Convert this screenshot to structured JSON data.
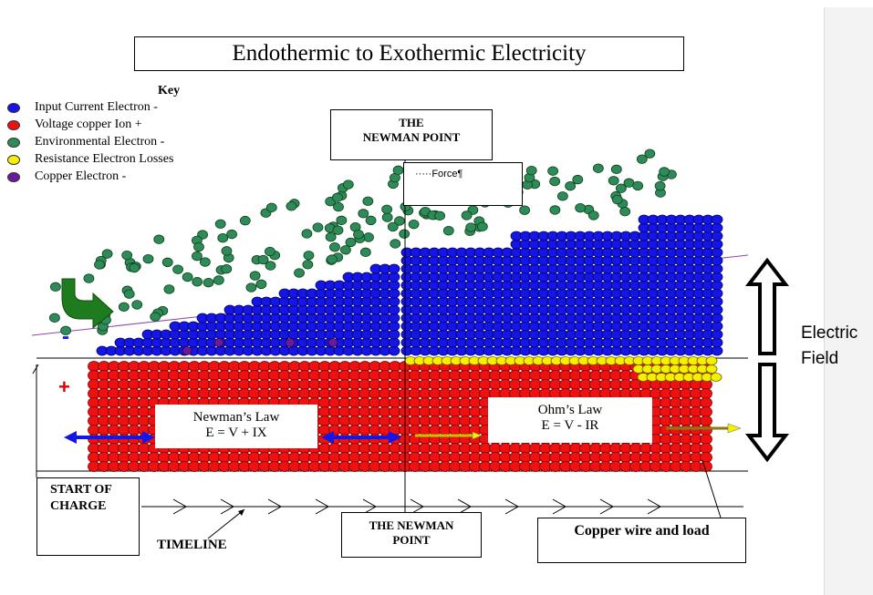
{
  "title": "Endothermic to Exothermic Electricity",
  "key": {
    "heading": "Key",
    "items": [
      {
        "label": "Input Current Electron -",
        "color": "#1515e6"
      },
      {
        "label": "Voltage copper Ion +",
        "color": "#ee1111"
      },
      {
        "label": "Environmental Electron -",
        "color": "#2e8b57"
      },
      {
        "label": "Resistance Electron Losses",
        "color": "#f5f000"
      },
      {
        "label": "Copper  Electron -",
        "color": "#6a1b9a"
      }
    ]
  },
  "newman_point_top": {
    "line1": "THE",
    "line2": "NEWMAN POINT"
  },
  "force_box": {
    "label": "·····Force¶"
  },
  "newmans_law": {
    "name": "Newman’s Law",
    "equation": "E = V + IX"
  },
  "ohms_law": {
    "name": "Ohm’s Law",
    "equation": "E = V - IR"
  },
  "start_of_charge": {
    "line1": "START OF",
    "line2": "CHARGE"
  },
  "timeline_label": "TIMELINE",
  "newman_point_bottom": {
    "line1": "THE NEWMAN",
    "line2": "POINT"
  },
  "copper_wire_label": "Copper wire and load",
  "electric_field": {
    "line1": "Electric",
    "line2": "Field"
  },
  "signs": {
    "minus": "-",
    "plus": "+"
  },
  "colors": {
    "electron_blue": "#1515e6",
    "ion_red": "#ee1111",
    "environmental_green": "#2e8b57",
    "loss_yellow": "#f5f000",
    "copper_purple": "#6a1b9a",
    "arrow_green": "#1e7b1e"
  }
}
